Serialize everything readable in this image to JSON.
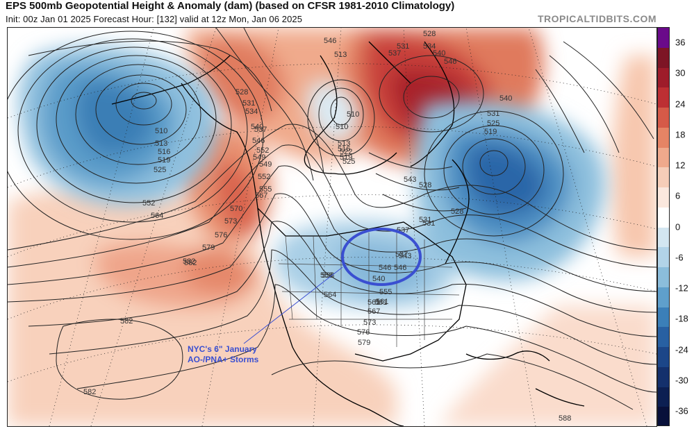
{
  "header": {
    "title": "EPS 500mb Geopotential Height & Anomaly (dam) (based on CFSR 1981-2010 Climatology)",
    "subtitle": "Init: 00z Jan 01 2025   Forecast Hour: [132]   valid at 12z Mon, Jan 06 2025",
    "brand": "TROPICALTIDBITS.COM"
  },
  "colorbar": {
    "labels": [
      "36",
      "30",
      "24",
      "18",
      "12",
      "6",
      "0",
      "-6",
      "-12",
      "-18",
      "-24",
      "-30",
      "-36"
    ],
    "colors": [
      "#6a0a8a",
      "#7d1525",
      "#9e1c2a",
      "#bd2f33",
      "#d55a48",
      "#e58465",
      "#efa98c",
      "#f6cdb8",
      "#fbe8de",
      "#ffffff",
      "#d3e6f1",
      "#b2d3e8",
      "#8bbddb",
      "#5f9fcb",
      "#3b7fb8",
      "#2860a2",
      "#1c4688",
      "#14306c",
      "#0c1f52",
      "#08103a"
    ]
  },
  "annotation": {
    "line1": "NYC's 6\" January",
    "line2": "AO-/PNA+ Storms",
    "color": "#3a4fd1"
  },
  "contour_labels": [
    "546",
    "513",
    "528",
    "537",
    "531",
    "534",
    "540",
    "546",
    "552",
    "510",
    "528",
    "531",
    "534",
    "537",
    "540",
    "543",
    "546",
    "549",
    "552",
    "555",
    "558",
    "561",
    "510",
    "513",
    "516",
    "519",
    "522",
    "525",
    "531",
    "537",
    "540",
    "546",
    "540",
    "531",
    "525",
    "519",
    "528",
    "510",
    "513",
    "516",
    "519",
    "525",
    "552",
    "564",
    "561",
    "567",
    "570",
    "573",
    "576",
    "579",
    "582",
    "528",
    "531",
    "537",
    "543",
    "546",
    "549",
    "558",
    "555",
    "561",
    "564",
    "567",
    "573",
    "576",
    "579",
    "582",
    "582",
    "582",
    "588"
  ]
}
